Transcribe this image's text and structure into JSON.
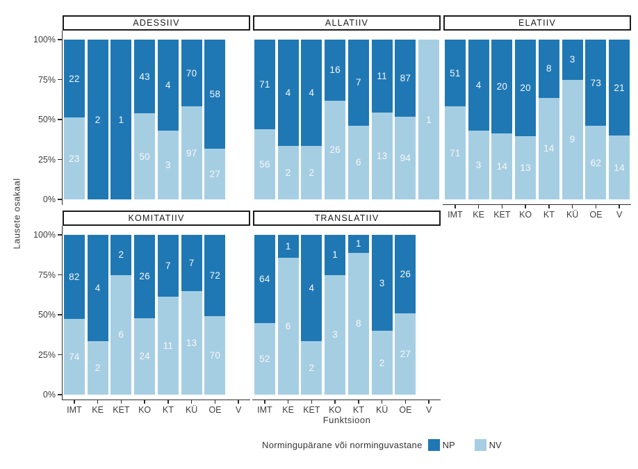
{
  "y_axis": {
    "title": "Lausete osakaal",
    "ticks": [
      {
        "label": "0%",
        "value": 0
      },
      {
        "label": "25%",
        "value": 25
      },
      {
        "label": "50%",
        "value": 50
      },
      {
        "label": "75%",
        "value": 75
      },
      {
        "label": "100%",
        "value": 100
      }
    ]
  },
  "x_axis": {
    "title": "Funktsioon",
    "categories": [
      "IMT",
      "KE",
      "KET",
      "KO",
      "KT",
      "KÜ",
      "OE",
      "V"
    ]
  },
  "legend": {
    "title": "Normingupärane või norminguvastane",
    "items": [
      {
        "label": "NP",
        "color": "#1f78b4"
      },
      {
        "label": "NV",
        "color": "#a6cee3"
      }
    ]
  },
  "colors": {
    "np": "#1f78b4",
    "nv": "#a6cee3",
    "bar_label": "#f7f7f7",
    "axis_line": "#2b2b2b",
    "tick_label": "#3d3d3d",
    "strip_border": "#1b1b1b"
  },
  "chart_data": {
    "type": "bar",
    "variant": "100%-stacked",
    "orientation": "vertical",
    "grid": false,
    "ylim": [
      0,
      100
    ],
    "categories": [
      "IMT",
      "KE",
      "KET",
      "KO",
      "KT",
      "KÜ",
      "OE",
      "V"
    ],
    "series_names": [
      "NP",
      "NV"
    ],
    "facets": [
      {
        "title": "ADESSIIV",
        "row": 0,
        "col": 0,
        "NP": [
          22,
          2,
          1,
          43,
          4,
          70,
          58,
          null
        ],
        "NV": [
          23,
          0,
          0,
          50,
          3,
          97,
          27,
          null
        ]
      },
      {
        "title": "ALLATIIV",
        "row": 0,
        "col": 1,
        "NP": [
          71,
          4,
          4,
          16,
          7,
          11,
          87,
          0
        ],
        "NV": [
          56,
          2,
          2,
          26,
          6,
          13,
          94,
          1
        ]
      },
      {
        "title": "ELATIIV",
        "row": 0,
        "col": 2,
        "NP": [
          51,
          4,
          20,
          20,
          8,
          3,
          73,
          21
        ],
        "NV": [
          71,
          3,
          14,
          13,
          14,
          9,
          62,
          14
        ]
      },
      {
        "title": "KOMITATIIV",
        "row": 1,
        "col": 0,
        "NP": [
          82,
          4,
          2,
          26,
          7,
          7,
          72,
          null
        ],
        "NV": [
          74,
          2,
          6,
          24,
          11,
          13,
          70,
          null
        ]
      },
      {
        "title": "TRANSLATIIV",
        "row": 1,
        "col": 1,
        "NP": [
          64,
          1,
          4,
          1,
          1,
          3,
          26,
          null
        ],
        "NV": [
          52,
          6,
          2,
          3,
          8,
          2,
          27,
          null
        ]
      }
    ]
  }
}
